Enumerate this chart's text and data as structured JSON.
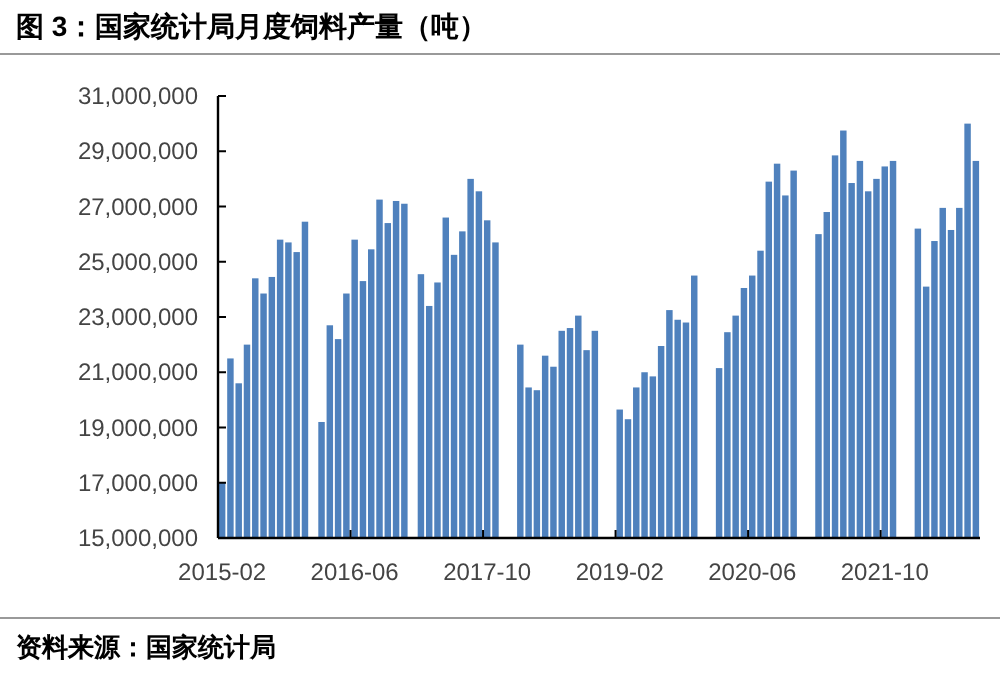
{
  "chart_data": {
    "type": "bar",
    "title": "图 3：国家统计局月度饲料产量（吨）",
    "categories": [
      "2015-02",
      null,
      null,
      null,
      null,
      null,
      null,
      null,
      null,
      null,
      null,
      null,
      null,
      null,
      null,
      null,
      "2016-06",
      null,
      null,
      null,
      null,
      null,
      null,
      null,
      null,
      null,
      null,
      null,
      null,
      null,
      null,
      null,
      "2017-10",
      null,
      null,
      null,
      null,
      null,
      null,
      null,
      null,
      null,
      null,
      null,
      null,
      null,
      null,
      null,
      "2019-02",
      null,
      null,
      null,
      null,
      null,
      null,
      null,
      null,
      null,
      null,
      null,
      null,
      null,
      null,
      null,
      "2020-06",
      null,
      null,
      null,
      null,
      null,
      null,
      null,
      null,
      null,
      null,
      null,
      null,
      null,
      null,
      null,
      "2021-10",
      null,
      null,
      null,
      null,
      null,
      null,
      null,
      null,
      null,
      null,
      null
    ],
    "values": [
      17000000,
      21500000,
      20600000,
      22000000,
      24400000,
      23850000,
      24450000,
      25800000,
      25700000,
      25350000,
      26450000,
      null,
      19200000,
      22700000,
      22200000,
      23850000,
      25800000,
      24300000,
      25450000,
      27250000,
      26400000,
      27200000,
      27100000,
      null,
      24550000,
      23400000,
      24250000,
      26600000,
      25250000,
      26100000,
      28000000,
      27550000,
      26500000,
      25700000,
      null,
      null,
      22000000,
      20450000,
      20350000,
      21600000,
      21200000,
      22500000,
      22600000,
      23050000,
      21800000,
      22500000,
      null,
      null,
      19650000,
      19300000,
      20450000,
      21000000,
      20850000,
      21950000,
      23250000,
      22900000,
      22800000,
      24500000,
      null,
      null,
      21150000,
      22450000,
      23050000,
      24050000,
      24500000,
      25400000,
      27900000,
      28550000,
      27400000,
      28300000,
      null,
      null,
      26000000,
      26800000,
      28850000,
      29750000,
      27850000,
      28650000,
      27550000,
      28000000,
      28450000,
      28650000,
      null,
      null,
      26200000,
      24100000,
      25750000,
      26950000,
      26150000,
      26950000,
      30000000,
      28650000
    ],
    "color": "#4f81bd",
    "ylim": [
      15000000,
      31000000
    ],
    "yticks": [
      {
        "value": 15000000,
        "label": "15,000,000"
      },
      {
        "value": 17000000,
        "label": "17,000,000"
      },
      {
        "value": 19000000,
        "label": "19,000,000"
      },
      {
        "value": 21000000,
        "label": "21,000,000"
      },
      {
        "value": 23000000,
        "label": "23,000,000"
      },
      {
        "value": 25000000,
        "label": "25,000,000"
      },
      {
        "value": 27000000,
        "label": "27,000,000"
      },
      {
        "value": 29000000,
        "label": "29,000,000"
      },
      {
        "value": 31000000,
        "label": "31,000,000"
      }
    ],
    "annotations": [
      "资料来源：国家统计局"
    ]
  }
}
